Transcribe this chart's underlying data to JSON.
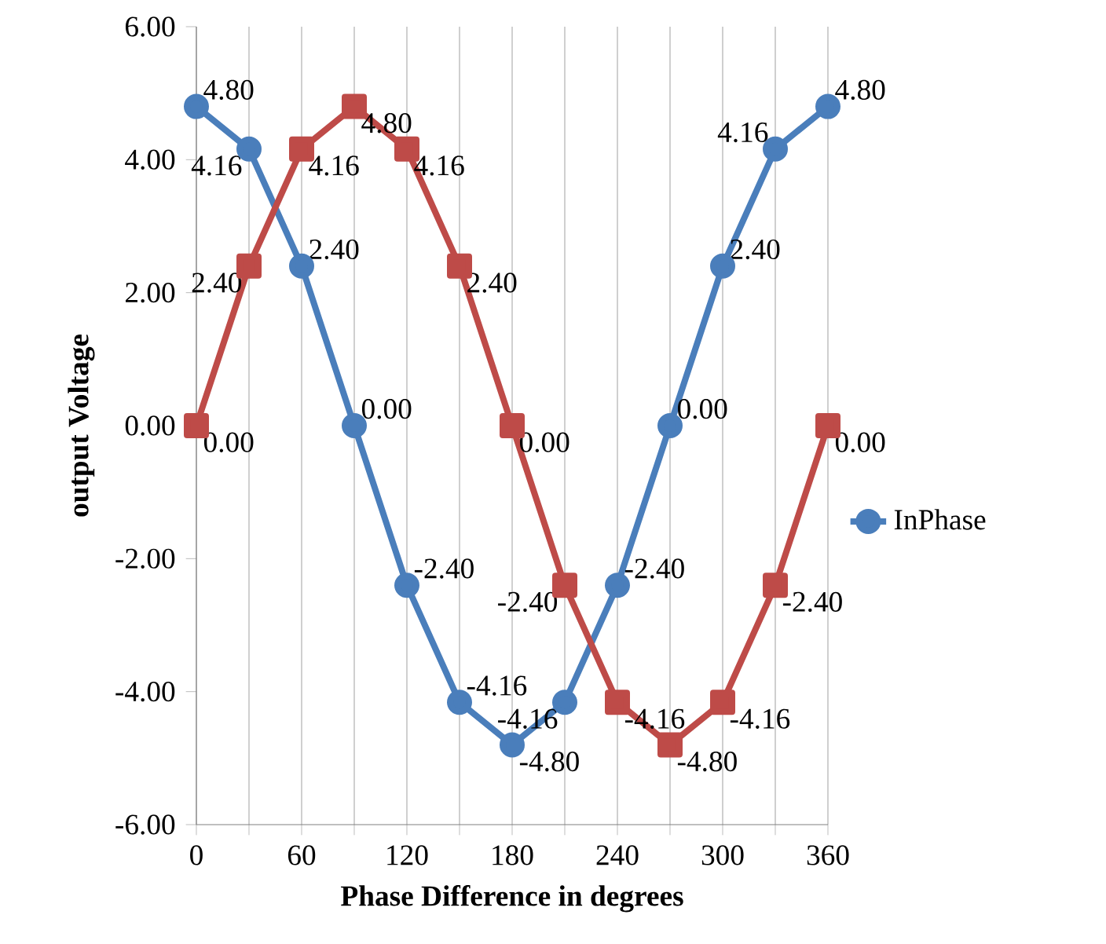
{
  "chart_data": {
    "type": "line",
    "xlabel": "Phase Difference  in degrees",
    "ylabel": "output Voltage",
    "x": [
      0,
      30,
      60,
      90,
      120,
      150,
      180,
      210,
      240,
      270,
      300,
      330,
      360
    ],
    "series": [
      {
        "name": "InPhase",
        "color": "#4a7ebb",
        "marker": "circle",
        "values": [
          4.8,
          4.16,
          2.4,
          0,
          -2.4,
          -4.16,
          -4.8,
          -4.16,
          -2.4,
          0,
          2.4,
          4.16,
          4.8
        ],
        "value_labels": [
          "4.80",
          "4.16",
          "2.40",
          "0.00",
          "-2.40",
          "-4.16",
          "-4.80",
          "-4.16",
          "-2.40",
          "0.00",
          "2.40",
          "4.16",
          "4.80"
        ]
      },
      {
        "color": "#be4b48",
        "marker": "square",
        "values": [
          0,
          2.4,
          4.16,
          4.8,
          4.16,
          2.4,
          0,
          -2.4,
          -4.16,
          -4.8,
          -4.16,
          -2.4,
          0
        ],
        "value_labels": [
          "0.00",
          "2.40",
          "4.16",
          "4.80",
          "4.16",
          "2.40",
          "0.00",
          "-2.40",
          "-4.16",
          "-4.80",
          "-4.16",
          "-2.40",
          "0.00"
        ]
      }
    ],
    "xlim": [
      0,
      360
    ],
    "xticks": [
      0,
      {
        "value": 30,
        "label": null
      },
      60,
      {
        "value": 90,
        "label": null
      },
      120,
      {
        "value": 150,
        "label": null
      },
      180,
      {
        "value": 210,
        "label": null
      },
      240,
      {
        "value": 270,
        "label": null
      },
      300,
      {
        "value": 330,
        "label": null
      },
      360
    ],
    "ylim": [
      -6,
      6
    ],
    "yticks": [
      {
        "value": -6,
        "label": "-6.00"
      },
      {
        "value": -4,
        "label": "-4.00"
      },
      {
        "value": -2,
        "label": "-2.00"
      },
      {
        "value": 0,
        "label": "0.00"
      },
      {
        "value": 2,
        "label": "2.00"
      },
      {
        "value": 4,
        "label": "4.00"
      },
      {
        "value": 6,
        "label": "6.00"
      }
    ],
    "grid": "x",
    "legend": "right",
    "line_style": "solid"
  }
}
